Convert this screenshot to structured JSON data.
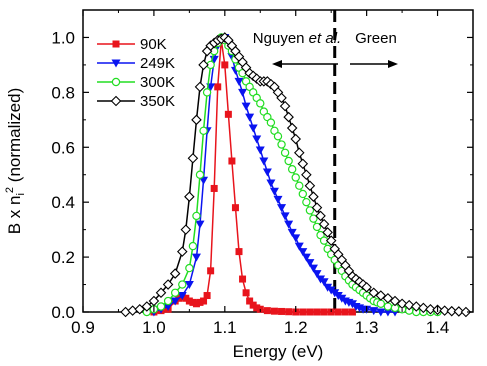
{
  "chart_data": {
    "type": "line",
    "xlabel": "Energy (eV)",
    "ylabel_parts": {
      "base": "B x n",
      "subscript": "i",
      "superscript": "2",
      "suffix": " (normalized)"
    },
    "xlim": [
      0.9,
      1.45
    ],
    "ylim": [
      0.0,
      1.1
    ],
    "xticks": [
      "0.9",
      "1.0",
      "1.1",
      "1.2",
      "1.3",
      "1.4"
    ],
    "yticks": [
      "0.0",
      "0.2",
      "0.4",
      "0.6",
      "0.8",
      "1.0"
    ],
    "grid": false,
    "legend_position": "top-left",
    "annotations": {
      "left_label_main": "Nguyen ",
      "left_label_italic": "et al.",
      "right_label": "Green",
      "dashed_line_x": 1.255
    },
    "series": [
      {
        "name": "90K",
        "color": "#e8141c",
        "marker": "square",
        "x": [
          1.0,
          1.01,
          1.02,
          1.03,
          1.035,
          1.04,
          1.045,
          1.05,
          1.055,
          1.06,
          1.065,
          1.07,
          1.075,
          1.08,
          1.085,
          1.09,
          1.095,
          1.1,
          1.105,
          1.11,
          1.115,
          1.12,
          1.125,
          1.13,
          1.135,
          1.14,
          1.145,
          1.15,
          1.16,
          1.17,
          1.18,
          1.19,
          1.2,
          1.21,
          1.22,
          1.23,
          1.24,
          1.25,
          1.26,
          1.27,
          1.28
        ],
        "y": [
          0.0,
          0.005,
          0.01,
          0.04,
          0.05,
          0.055,
          0.05,
          0.04,
          0.035,
          0.03,
          0.035,
          0.04,
          0.06,
          0.15,
          0.45,
          0.82,
          0.99,
          0.9,
          0.72,
          0.55,
          0.38,
          0.22,
          0.12,
          0.07,
          0.04,
          0.025,
          0.015,
          0.01,
          0.005,
          0.003,
          0.002,
          0.001,
          0.0,
          0.0,
          0.0,
          0.0,
          0.0,
          0.0,
          0.0,
          0.0,
          0.0
        ]
      },
      {
        "name": "249K",
        "color": "#0a14f0",
        "marker": "triangle-down",
        "x": [
          1.0,
          1.01,
          1.02,
          1.03,
          1.04,
          1.05,
          1.06,
          1.065,
          1.07,
          1.075,
          1.08,
          1.085,
          1.09,
          1.095,
          1.1,
          1.105,
          1.11,
          1.115,
          1.12,
          1.125,
          1.13,
          1.135,
          1.14,
          1.145,
          1.15,
          1.155,
          1.16,
          1.165,
          1.17,
          1.175,
          1.18,
          1.185,
          1.19,
          1.195,
          1.2,
          1.205,
          1.21,
          1.215,
          1.22,
          1.225,
          1.23,
          1.235,
          1.24,
          1.245,
          1.25,
          1.255,
          1.26,
          1.265,
          1.27,
          1.275,
          1.28,
          1.285,
          1.29,
          1.295,
          1.3,
          1.31,
          1.32,
          1.33,
          1.34
        ],
        "y": [
          0.0,
          0.01,
          0.02,
          0.04,
          0.06,
          0.1,
          0.2,
          0.32,
          0.48,
          0.66,
          0.82,
          0.92,
          0.97,
          0.99,
          1.0,
          0.97,
          0.93,
          0.88,
          0.84,
          0.8,
          0.75,
          0.71,
          0.67,
          0.63,
          0.59,
          0.55,
          0.51,
          0.47,
          0.44,
          0.41,
          0.38,
          0.35,
          0.32,
          0.29,
          0.27,
          0.24,
          0.22,
          0.2,
          0.18,
          0.16,
          0.14,
          0.12,
          0.11,
          0.09,
          0.08,
          0.07,
          0.06,
          0.05,
          0.04,
          0.035,
          0.03,
          0.02,
          0.015,
          0.01,
          0.01,
          0.005,
          0.0,
          0.0,
          0.0
        ]
      },
      {
        "name": "300K",
        "color": "#22dd22",
        "marker": "circle-open",
        "x": [
          0.99,
          1.0,
          1.01,
          1.02,
          1.03,
          1.04,
          1.05,
          1.055,
          1.06,
          1.065,
          1.07,
          1.075,
          1.08,
          1.085,
          1.09,
          1.095,
          1.1,
          1.105,
          1.11,
          1.115,
          1.12,
          1.125,
          1.13,
          1.135,
          1.14,
          1.145,
          1.15,
          1.155,
          1.16,
          1.165,
          1.17,
          1.175,
          1.18,
          1.185,
          1.19,
          1.195,
          1.2,
          1.205,
          1.21,
          1.215,
          1.22,
          1.225,
          1.23,
          1.235,
          1.24,
          1.245,
          1.25,
          1.255,
          1.26,
          1.265,
          1.27,
          1.275,
          1.28,
          1.285,
          1.29,
          1.295,
          1.3,
          1.305,
          1.31,
          1.315,
          1.32,
          1.33,
          1.34,
          1.35,
          1.36,
          1.37,
          1.38,
          1.39,
          1.4
        ],
        "y": [
          0.0,
          0.01,
          0.02,
          0.04,
          0.07,
          0.1,
          0.16,
          0.24,
          0.35,
          0.5,
          0.66,
          0.8,
          0.9,
          0.95,
          0.98,
          1.0,
          0.99,
          0.97,
          0.95,
          0.92,
          0.89,
          0.87,
          0.84,
          0.82,
          0.8,
          0.78,
          0.76,
          0.73,
          0.71,
          0.69,
          0.66,
          0.64,
          0.61,
          0.58,
          0.55,
          0.52,
          0.49,
          0.46,
          0.43,
          0.4,
          0.37,
          0.34,
          0.31,
          0.28,
          0.26,
          0.23,
          0.21,
          0.19,
          0.17,
          0.15,
          0.13,
          0.115,
          0.1,
          0.09,
          0.08,
          0.07,
          0.06,
          0.05,
          0.04,
          0.035,
          0.03,
          0.02,
          0.015,
          0.01,
          0.005,
          0.0,
          0.0,
          0.0,
          0.0
        ]
      },
      {
        "name": "350K",
        "color": "#000000",
        "marker": "diamond-open",
        "x": [
          0.96,
          0.97,
          0.98,
          0.99,
          1.0,
          1.01,
          1.02,
          1.03,
          1.04,
          1.045,
          1.05,
          1.055,
          1.06,
          1.065,
          1.07,
          1.075,
          1.08,
          1.085,
          1.09,
          1.095,
          1.1,
          1.105,
          1.11,
          1.115,
          1.12,
          1.125,
          1.13,
          1.135,
          1.14,
          1.145,
          1.15,
          1.155,
          1.16,
          1.165,
          1.17,
          1.175,
          1.18,
          1.185,
          1.19,
          1.195,
          1.2,
          1.205,
          1.21,
          1.215,
          1.22,
          1.225,
          1.23,
          1.235,
          1.24,
          1.245,
          1.25,
          1.255,
          1.26,
          1.265,
          1.27,
          1.275,
          1.28,
          1.285,
          1.29,
          1.295,
          1.3,
          1.31,
          1.32,
          1.33,
          1.34,
          1.35,
          1.36,
          1.37,
          1.38,
          1.39,
          1.4,
          1.41,
          1.42,
          1.43,
          1.44
        ],
        "y": [
          0.0,
          0.005,
          0.01,
          0.02,
          0.04,
          0.07,
          0.1,
          0.14,
          0.22,
          0.3,
          0.42,
          0.56,
          0.7,
          0.82,
          0.9,
          0.95,
          0.97,
          0.98,
          0.99,
          0.995,
          1.0,
          0.99,
          0.97,
          0.95,
          0.93,
          0.91,
          0.89,
          0.87,
          0.86,
          0.85,
          0.84,
          0.84,
          0.84,
          0.83,
          0.82,
          0.8,
          0.78,
          0.75,
          0.71,
          0.67,
          0.63,
          0.58,
          0.54,
          0.5,
          0.46,
          0.42,
          0.38,
          0.35,
          0.32,
          0.29,
          0.26,
          0.23,
          0.21,
          0.19,
          0.17,
          0.15,
          0.13,
          0.12,
          0.11,
          0.1,
          0.09,
          0.07,
          0.06,
          0.05,
          0.04,
          0.03,
          0.025,
          0.02,
          0.015,
          0.01,
          0.008,
          0.005,
          0.003,
          0.002,
          0.0
        ]
      }
    ]
  }
}
